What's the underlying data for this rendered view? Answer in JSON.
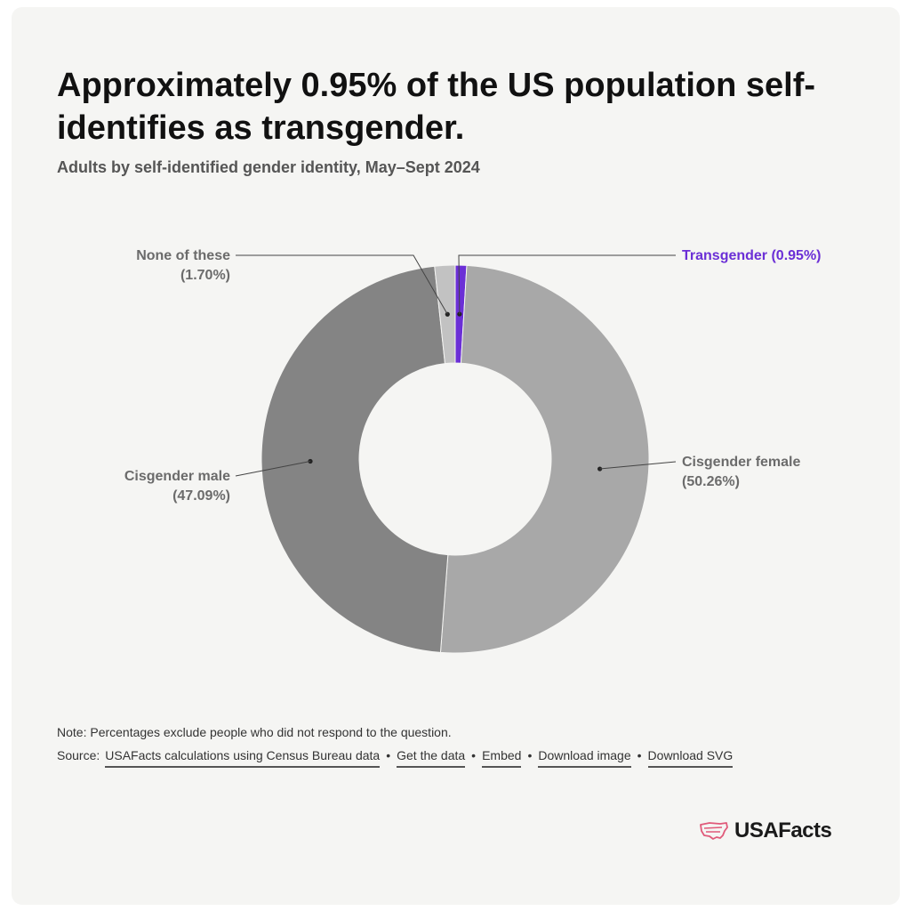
{
  "header": {
    "title": "Approximately 0.95% of the US population self-identifies as transgender.",
    "subtitle": "Adults by self-identified gender identity, May–Sept 2024"
  },
  "chart_data": {
    "type": "pie",
    "donut": true,
    "categories": [
      "Transgender",
      "Cisgender female",
      "Cisgender male",
      "None of these"
    ],
    "values": [
      0.95,
      50.26,
      47.09,
      1.7
    ],
    "display_labels": [
      "Transgender (0.95%)",
      "Cisgender female",
      "Cisgender male",
      "None of these"
    ],
    "percent_labels": [
      "",
      "(50.26%)",
      "(47.09%)",
      "(1.70%)"
    ],
    "colors": [
      "#6b2fd6",
      "#a8a8a8",
      "#848484",
      "#c2c2c2"
    ],
    "label_colors": [
      "#6b2fd6",
      "#6b6b6b",
      "#6b6b6b",
      "#6b6b6b"
    ],
    "title": "Approximately 0.95% of the US population self-identifies as transgender.",
    "subtitle": "Adults by self-identified gender identity, May–Sept 2024"
  },
  "footer": {
    "note": "Note: Percentages exclude people who did not respond to the question.",
    "source_prefix": "Source:",
    "links": [
      "USAFacts calculations using Census Bureau data",
      "Get the data",
      "Embed",
      "Download image",
      "Download SVG"
    ],
    "separator": "•"
  },
  "logo": {
    "text": "USAFacts",
    "icon": "usa-map-icon"
  }
}
